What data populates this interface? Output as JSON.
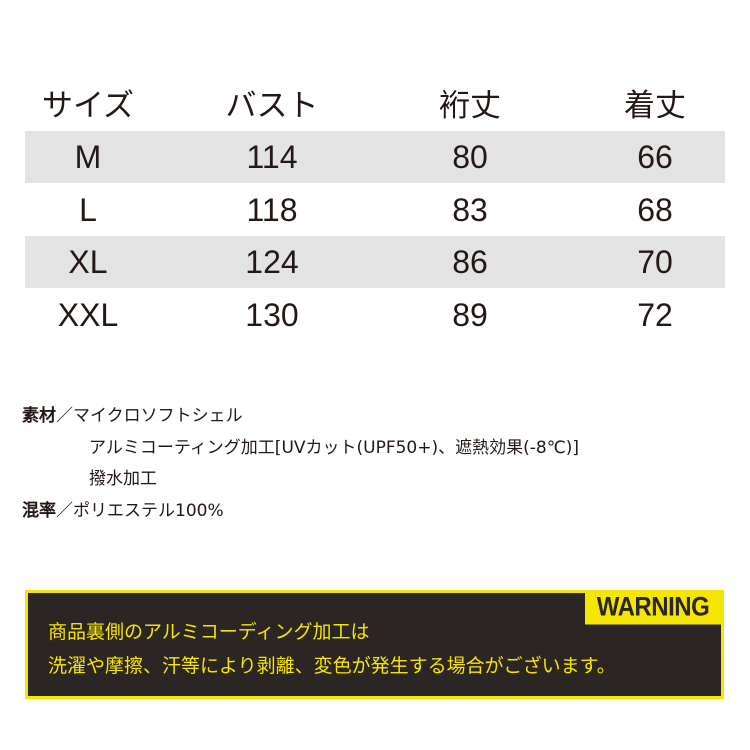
{
  "table": {
    "headers": [
      "サイズ",
      "バスト",
      "裄丈",
      "着丈"
    ],
    "rows": [
      [
        "M",
        "114",
        "80",
        "66"
      ],
      [
        "L",
        "118",
        "83",
        "68"
      ],
      [
        "XL",
        "124",
        "86",
        "70"
      ],
      [
        "XXL",
        "130",
        "89",
        "72"
      ]
    ]
  },
  "specs": {
    "material_label": "素材",
    "sep": "／",
    "material_lines": [
      "マイクロソフトシェル",
      "アルミコーティング加工[UVカット(UPF50+)、遮熱効果(-8℃)]",
      "撥水加工"
    ],
    "blend_label": "混率",
    "blend": "ポリエステル100%"
  },
  "warning": {
    "tag": "WARNING",
    "lines": [
      "商品裏側のアルミコーディング加工は",
      "洗濯や摩擦、汗等により剥離、変色が発生する場合がございます。"
    ]
  },
  "colors": {
    "accent": "#f5e600",
    "box": "#2b2523",
    "stripe": "#e3e3e3"
  }
}
